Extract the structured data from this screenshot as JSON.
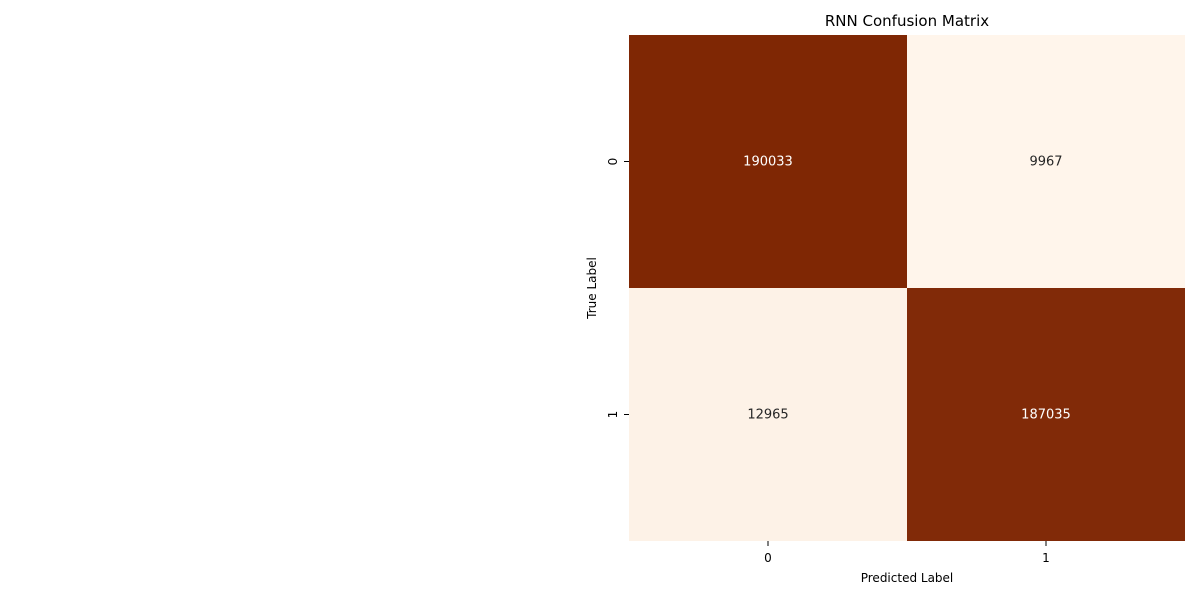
{
  "chart_data": {
    "type": "heatmap",
    "title": "RNN Confusion Matrix",
    "xlabel": "Predicted Label",
    "ylabel": "True Label",
    "x_categories": [
      "0",
      "1"
    ],
    "y_categories": [
      "0",
      "1"
    ],
    "values": [
      [
        190033,
        9967
      ],
      [
        12965,
        187035
      ]
    ],
    "colormap": {
      "name": "Oranges",
      "low": "#fff5eb",
      "high": "#7f2704"
    },
    "colorbar": false,
    "grid": false,
    "legend": "none"
  }
}
